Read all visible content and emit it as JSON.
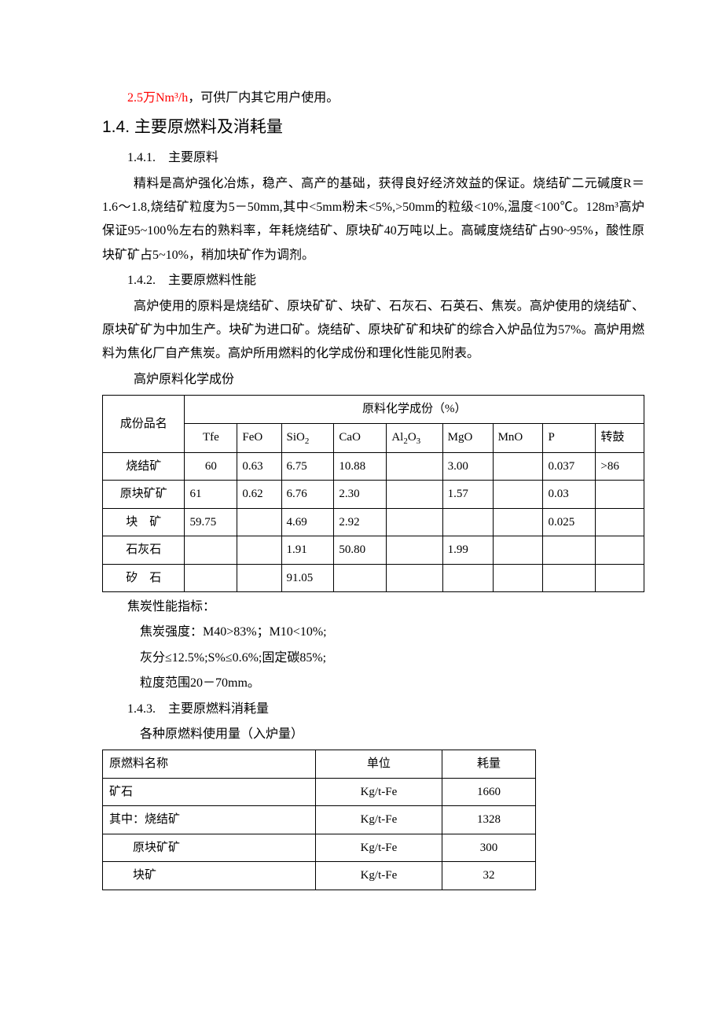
{
  "intro_line": {
    "red_part": "2.5万Nm³/h",
    "black_part": "，可供厂内其它用户使用。"
  },
  "sec_1_4": {
    "number": "1.4.",
    "title": "主要原燃料及消耗量"
  },
  "sec_1_4_1": {
    "heading": "1.4.1.　主要原料",
    "para": "精料是高炉强化冶炼，稳产、高产的基础，获得良好经济效益的保证。烧结矿二元碱度R＝1.6～1.8,烧结矿粒度为5－50mm,其中<5mm粉未<5%,>50mm的粒级<10%,温度<100℃。128m³高炉保证95~100％左右的熟料率，年耗烧结矿、原块矿40万吨以上。高碱度烧结矿占90~95%，酸性原块矿矿占5~10%，稍加块矿作为调剂。"
  },
  "sec_1_4_2": {
    "heading": "1.4.2.　主要原燃料性能",
    "para": "高炉使用的原料是烧结矿、原块矿矿、块矿、石灰石、石英石、焦炭。高炉使用的烧结矿、原块矿矿为中加生产。块矿为进口矿。烧结矿、原块矿矿和块矿的综合入炉品位为57%。高炉用燃料为焦化厂自产焦炭。高炉所用燃料的化学成份和理化性能见附表。",
    "table_caption": "高炉原料化学成份"
  },
  "table1": {
    "col1_header": "成份品名",
    "col_group": "原料化学成份（%）",
    "columns": [
      "Tfe",
      "FeO",
      "SiO₂",
      "CaO",
      "Al₂O₃",
      "MgO",
      "MnO",
      "P",
      "转鼓"
    ],
    "rows": [
      {
        "name": "烧结矿",
        "cells": [
          "60",
          "0.63",
          "6.75",
          "10.88",
          "",
          "3.00",
          "",
          "0.037",
          ">86"
        ]
      },
      {
        "name": "原块矿矿",
        "cells": [
          "61",
          "0.62",
          "6.76",
          "2.30",
          "",
          "1.57",
          "",
          "0.03",
          ""
        ]
      },
      {
        "name": "块　矿",
        "cells": [
          "59.75",
          "",
          "4.69",
          "2.92",
          "",
          "",
          "",
          "0.025",
          ""
        ]
      },
      {
        "name": "石灰石",
        "cells": [
          "",
          "",
          "1.91",
          "50.80",
          "",
          "1.99",
          "",
          "",
          ""
        ]
      },
      {
        "name": "矽　石",
        "cells": [
          "",
          "",
          "91.05",
          "",
          "",
          "",
          "",
          "",
          ""
        ]
      }
    ]
  },
  "coke": {
    "title": "焦炭性能指标：",
    "l1": "焦炭强度：M40>83%；M10<10%;",
    "l2": "灰分≤12.5%;S%≤0.6%;固定碳85%;",
    "l3": "粒度范围20－70mm。"
  },
  "sec_1_4_3": {
    "heading": "1.4.3.　主要原燃料消耗量",
    "caption": "各种原燃料使用量（入炉量）"
  },
  "table2": {
    "headers": [
      "原燃料名称",
      "单位",
      "耗量"
    ],
    "rows": [
      {
        "name": "矿石",
        "unit": "Kg/t-Fe",
        "qty": "1660"
      },
      {
        "name": "其中：烧结矿",
        "unit": "Kg/t-Fe",
        "qty": "1328"
      },
      {
        "name": "　　原块矿矿",
        "unit": "Kg/t-Fe",
        "qty": "300"
      },
      {
        "name": "　　块矿",
        "unit": "Kg/t-Fe",
        "qty": "32"
      }
    ]
  }
}
